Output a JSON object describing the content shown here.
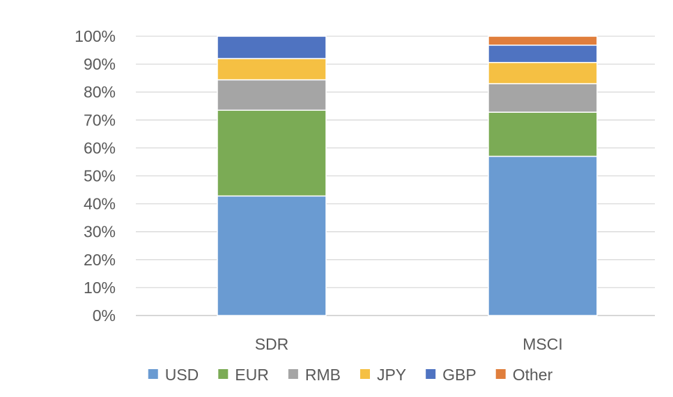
{
  "chart_data": {
    "type": "bar",
    "stacked": true,
    "categories": [
      "SDR",
      "MSCI"
    ],
    "series": [
      {
        "name": "USD",
        "color": "#6a9bd2",
        "values": [
          42.8,
          57.0
        ]
      },
      {
        "name": "EUR",
        "color": "#7bab55",
        "values": [
          30.7,
          15.8
        ]
      },
      {
        "name": "RMB",
        "color": "#a5a5a5",
        "values": [
          10.9,
          10.2
        ]
      },
      {
        "name": "JPY",
        "color": "#f5c043",
        "values": [
          7.6,
          7.6
        ]
      },
      {
        "name": "GBP",
        "color": "#4f73c1",
        "values": [
          8.0,
          6.2
        ]
      },
      {
        "name": "Other",
        "color": "#e07e3c",
        "values": [
          0.0,
          3.2
        ]
      }
    ],
    "ylim": [
      0,
      100
    ],
    "yticks": [
      "0%",
      "10%",
      "20%",
      "30%",
      "40%",
      "50%",
      "60%",
      "70%",
      "80%",
      "90%",
      "100%"
    ],
    "grid": true,
    "legend_position": "bottom",
    "title": "",
    "xlabel": "",
    "ylabel": ""
  }
}
